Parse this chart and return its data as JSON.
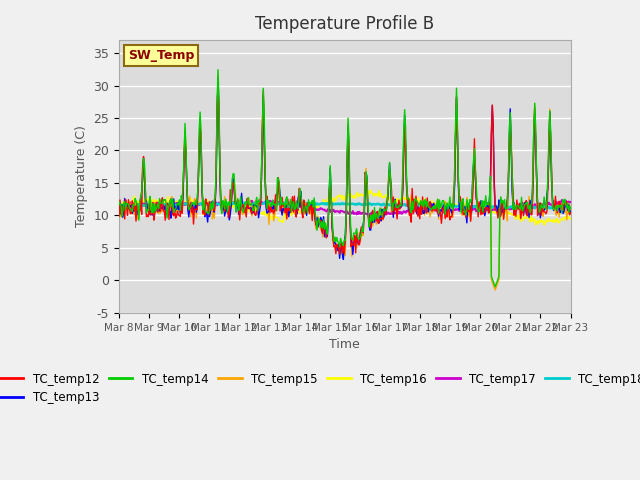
{
  "title": "Temperature Profile B",
  "xlabel": "Time",
  "ylabel": "Temperature (C)",
  "ylim": [
    -5,
    37
  ],
  "background_color": "#dcdcdc",
  "plot_bg": "#dcdcdc",
  "grid_color": "white",
  "xtick_labels": [
    "Mar 8",
    "Mar 9",
    "Mar 10",
    "Mar 11",
    "Mar 12",
    "Mar 13",
    "Mar 14",
    "Mar 15",
    "Mar 16",
    "Mar 17",
    "Mar 18",
    "Mar 19",
    "Mar 20",
    "Mar 21",
    "Mar 22",
    "Mar 23"
  ],
  "sw_temp_color": "#8B0000",
  "sw_temp_bg": "#FFFF99",
  "series_colors": {
    "TC_temp12": "#FF0000",
    "TC_temp13": "#0000FF",
    "TC_temp14": "#00CC00",
    "TC_temp15": "#FFA500",
    "TC_temp16": "#FFFF00",
    "TC_temp17": "#CC00CC",
    "TC_temp18": "#00CCCC"
  },
  "n_points": 480,
  "days": 15
}
